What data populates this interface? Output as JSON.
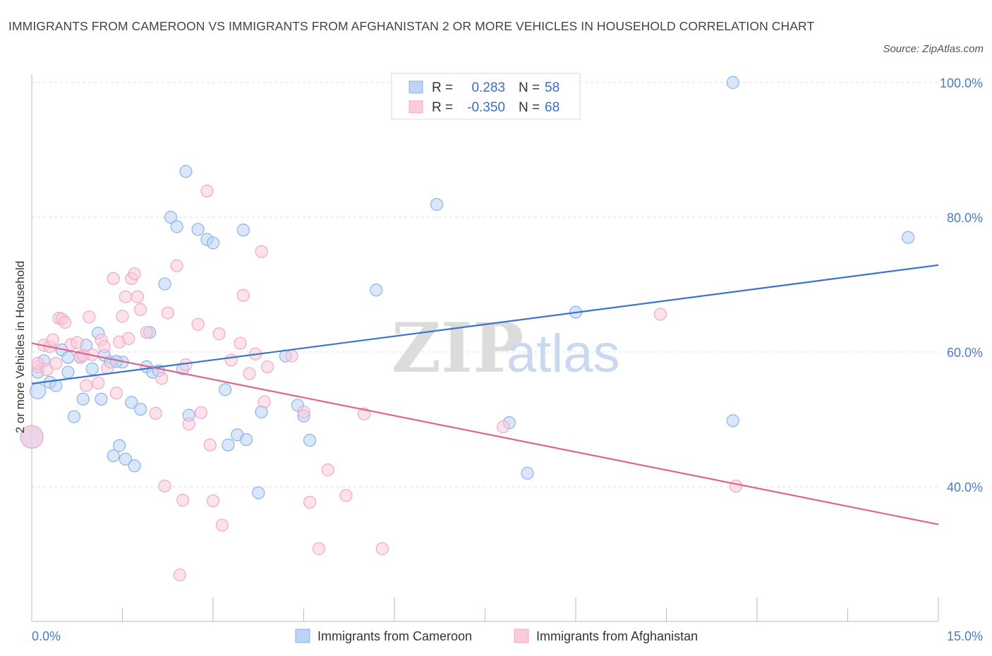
{
  "title": "IMMIGRANTS FROM CAMEROON VS IMMIGRANTS FROM AFGHANISTAN 2 OR MORE VEHICLES IN HOUSEHOLD CORRELATION CHART",
  "source": "Source: ZipAtlas.com",
  "watermark": {
    "zip": "ZIP",
    "atlas": "atlas"
  },
  "chart_data": {
    "type": "scatter",
    "title": "IMMIGRANTS FROM CAMEROON VS IMMIGRANTS FROM AFGHANISTAN 2 OR MORE VEHICLES IN HOUSEHOLD CORRELATION CHART",
    "xlabel": "",
    "ylabel": "2 or more Vehicles in Household",
    "xlim": [
      0,
      15
    ],
    "ylim": [
      20,
      100
    ],
    "x_tick_labels": {
      "left": "0.0%",
      "right": "15.0%"
    },
    "y_ticks": [
      {
        "value": 100,
        "label": "100.0%"
      },
      {
        "value": 80,
        "label": "80.0%"
      },
      {
        "value": 60,
        "label": "60.0%"
      },
      {
        "value": 40,
        "label": "40.0%"
      }
    ],
    "grid": true,
    "legend_placement": "top-center",
    "series": [
      {
        "name": "Immigrants from Cameroon",
        "color": "#8ab4e8",
        "line_color": "#3a75cc",
        "R": "0.283",
        "N": "58",
        "trend": {
          "x0": 0.0,
          "y0": 55.3,
          "x1": 15.0,
          "y1": 72.9
        },
        "points": [
          [
            0.1,
            54.2
          ],
          [
            0.1,
            57.0
          ],
          [
            0.2,
            58.7
          ],
          [
            0.3,
            55.5
          ],
          [
            0.4,
            55.0
          ],
          [
            0.5,
            60.3
          ],
          [
            0.6,
            57.0
          ],
          [
            0.7,
            50.4
          ],
          [
            0.8,
            59.3
          ],
          [
            0.85,
            53.0
          ],
          [
            0.9,
            61.0
          ],
          [
            1.0,
            57.5
          ],
          [
            1.1,
            62.8
          ],
          [
            1.15,
            53.0
          ],
          [
            1.2,
            59.5
          ],
          [
            1.3,
            58.5
          ],
          [
            1.35,
            44.6
          ],
          [
            1.45,
            46.1
          ],
          [
            1.5,
            58.5
          ],
          [
            1.55,
            44.1
          ],
          [
            1.65,
            52.5
          ],
          [
            1.7,
            43.1
          ],
          [
            1.8,
            51.5
          ],
          [
            1.9,
            57.8
          ],
          [
            1.95,
            62.9
          ],
          [
            2.0,
            57.0
          ],
          [
            2.1,
            57.2
          ],
          [
            2.2,
            70.1
          ],
          [
            2.3,
            80.0
          ],
          [
            2.4,
            78.6
          ],
          [
            2.5,
            57.5
          ],
          [
            2.55,
            86.8
          ],
          [
            2.6,
            50.6
          ],
          [
            2.75,
            78.2
          ],
          [
            2.9,
            76.7
          ],
          [
            3.0,
            76.2
          ],
          [
            3.2,
            54.4
          ],
          [
            3.25,
            46.2
          ],
          [
            3.4,
            47.7
          ],
          [
            3.5,
            78.1
          ],
          [
            3.55,
            47.0
          ],
          [
            3.75,
            39.1
          ],
          [
            3.8,
            51.1
          ],
          [
            4.2,
            59.4
          ],
          [
            4.4,
            52.1
          ],
          [
            4.5,
            50.5
          ],
          [
            4.6,
            46.9
          ],
          [
            5.7,
            69.2
          ],
          [
            6.7,
            81.9
          ],
          [
            7.9,
            49.5
          ],
          [
            8.2,
            42.0
          ],
          [
            9.0,
            65.9
          ],
          [
            11.6,
            100.0
          ],
          [
            11.6,
            49.8
          ],
          [
            14.5,
            77.0
          ],
          [
            0.0,
            47.4
          ],
          [
            0.6,
            59.2
          ],
          [
            1.4,
            58.6
          ]
        ]
      },
      {
        "name": "Immigrants from Afghanistan",
        "color": "#f3a9c2",
        "line_color": "#e0648f",
        "R": "-0.350",
        "N": "68",
        "trend": {
          "x0": 0.0,
          "y0": 61.3,
          "x1": 15.0,
          "y1": 34.4
        },
        "points": [
          [
            0.1,
            57.8
          ],
          [
            0.1,
            58.3
          ],
          [
            0.2,
            61.0
          ],
          [
            0.25,
            57.4
          ],
          [
            0.3,
            60.8
          ],
          [
            0.35,
            61.8
          ],
          [
            0.4,
            58.3
          ],
          [
            0.45,
            65.0
          ],
          [
            0.5,
            64.9
          ],
          [
            0.55,
            64.4
          ],
          [
            0.65,
            61.1
          ],
          [
            0.75,
            61.4
          ],
          [
            0.8,
            59.2
          ],
          [
            0.85,
            59.5
          ],
          [
            0.9,
            55.0
          ],
          [
            0.95,
            65.2
          ],
          [
            1.0,
            59.6
          ],
          [
            1.1,
            55.4
          ],
          [
            1.15,
            61.8
          ],
          [
            1.2,
            60.8
          ],
          [
            1.25,
            57.6
          ],
          [
            1.35,
            70.9
          ],
          [
            1.4,
            53.9
          ],
          [
            1.45,
            61.5
          ],
          [
            1.5,
            65.3
          ],
          [
            1.55,
            68.2
          ],
          [
            1.6,
            62.0
          ],
          [
            1.65,
            70.9
          ],
          [
            1.7,
            71.6
          ],
          [
            1.75,
            68.2
          ],
          [
            1.8,
            66.3
          ],
          [
            1.9,
            62.9
          ],
          [
            2.05,
            50.9
          ],
          [
            2.15,
            56.1
          ],
          [
            2.2,
            40.1
          ],
          [
            2.25,
            65.8
          ],
          [
            2.4,
            72.8
          ],
          [
            2.5,
            38.0
          ],
          [
            2.55,
            58.1
          ],
          [
            2.6,
            49.3
          ],
          [
            2.75,
            64.1
          ],
          [
            2.8,
            51.0
          ],
          [
            2.9,
            83.9
          ],
          [
            2.95,
            46.2
          ],
          [
            3.0,
            37.9
          ],
          [
            3.1,
            62.7
          ],
          [
            3.15,
            34.3
          ],
          [
            3.3,
            58.8
          ],
          [
            3.45,
            61.3
          ],
          [
            3.5,
            68.4
          ],
          [
            3.6,
            56.8
          ],
          [
            3.7,
            59.7
          ],
          [
            3.8,
            74.9
          ],
          [
            3.85,
            52.6
          ],
          [
            3.9,
            57.8
          ],
          [
            4.3,
            59.4
          ],
          [
            4.5,
            51.1
          ],
          [
            4.6,
            37.7
          ],
          [
            4.75,
            30.8
          ],
          [
            4.9,
            42.5
          ],
          [
            5.2,
            38.7
          ],
          [
            5.5,
            50.8
          ],
          [
            5.8,
            30.8
          ],
          [
            7.8,
            48.9
          ],
          [
            10.4,
            65.6
          ],
          [
            11.65,
            40.1
          ],
          [
            2.45,
            26.9
          ],
          [
            0.0,
            47.4
          ]
        ]
      }
    ]
  }
}
